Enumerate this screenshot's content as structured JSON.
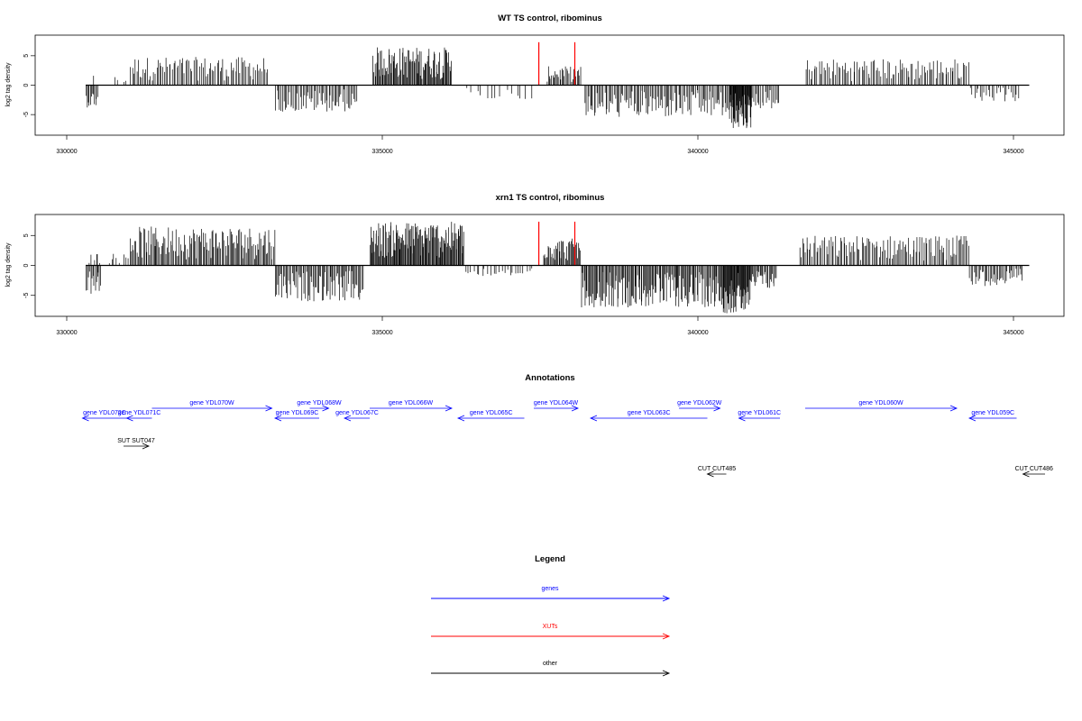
{
  "chart_data": [
    {
      "type": "bar",
      "title": "WT TS control, ribominus",
      "ylabel": "log2 tag density",
      "xlim": [
        329500,
        345800
      ],
      "ylim": [
        -8.5,
        8.5
      ],
      "x_ticks": [
        330000,
        335000,
        340000,
        345000
      ],
      "y_ticks": [
        -5,
        0,
        5
      ],
      "baseline_range": [
        330300,
        345250
      ],
      "segments": [
        {
          "from": 330300,
          "to": 330500,
          "sign": -1,
          "max": 3.8,
          "density": 12
        },
        {
          "from": 330420,
          "to": 330440,
          "sign": 1,
          "max": 3.0,
          "density": 1
        },
        {
          "from": 330700,
          "to": 331000,
          "sign": 1,
          "max": 1.5,
          "density": 4
        },
        {
          "from": 331000,
          "to": 333200,
          "sign": 1,
          "max": 4.8,
          "density": 90
        },
        {
          "from": 333300,
          "to": 334600,
          "sign": -1,
          "max": 4.5,
          "density": 60
        },
        {
          "from": 334850,
          "to": 336100,
          "sign": 1,
          "max": 6.5,
          "density": 95
        },
        {
          "from": 336300,
          "to": 337400,
          "sign": -1,
          "max": 2.5,
          "density": 14
        },
        {
          "from": 337600,
          "to": 338150,
          "sign": 1,
          "max": 3.2,
          "density": 30
        },
        {
          "from": 338200,
          "to": 340500,
          "sign": -1,
          "max": 5.5,
          "density": 110
        },
        {
          "from": 340500,
          "to": 340850,
          "sign": -1,
          "max": 7.5,
          "density": 45
        },
        {
          "from": 340850,
          "to": 341300,
          "sign": -1,
          "max": 4.0,
          "density": 20
        },
        {
          "from": 341700,
          "to": 344300,
          "sign": 1,
          "max": 4.5,
          "density": 100
        },
        {
          "from": 344300,
          "to": 345100,
          "sign": -1,
          "max": 2.8,
          "density": 25
        }
      ],
      "highlight_lines": [
        {
          "x": 337480,
          "y": 7.3,
          "color": "#ff0000"
        },
        {
          "x": 338050,
          "y": 7.3,
          "color": "#ff0000"
        }
      ]
    },
    {
      "type": "bar",
      "title": "xrn1 TS control, ribominus",
      "ylabel": "log2 tag density",
      "xlim": [
        329500,
        345800
      ],
      "ylim": [
        -8.5,
        8.5
      ],
      "x_ticks": [
        330000,
        335000,
        340000,
        345000
      ],
      "y_ticks": [
        -5,
        0,
        5
      ],
      "baseline_range": [
        330300,
        345250
      ],
      "segments": [
        {
          "from": 330300,
          "to": 330550,
          "sign": -1,
          "max": 5.0,
          "density": 14
        },
        {
          "from": 330350,
          "to": 330550,
          "sign": 1,
          "max": 2.2,
          "density": 6
        },
        {
          "from": 330650,
          "to": 331000,
          "sign": 1,
          "max": 2.0,
          "density": 8
        },
        {
          "from": 331000,
          "to": 333300,
          "sign": 1,
          "max": 6.5,
          "density": 130
        },
        {
          "from": 333300,
          "to": 334700,
          "sign": -1,
          "max": 6.0,
          "density": 80
        },
        {
          "from": 334800,
          "to": 336300,
          "sign": 1,
          "max": 7.3,
          "density": 130
        },
        {
          "from": 336300,
          "to": 337400,
          "sign": -1,
          "max": 1.8,
          "density": 25
        },
        {
          "from": 337550,
          "to": 338150,
          "sign": 1,
          "max": 4.5,
          "density": 40
        },
        {
          "from": 338150,
          "to": 340400,
          "sign": -1,
          "max": 7.0,
          "density": 150
        },
        {
          "from": 340400,
          "to": 340850,
          "sign": -1,
          "max": 8.0,
          "density": 50
        },
        {
          "from": 340850,
          "to": 341250,
          "sign": -1,
          "max": 4.0,
          "density": 25
        },
        {
          "from": 341600,
          "to": 344300,
          "sign": 1,
          "max": 5.0,
          "density": 120
        },
        {
          "from": 344300,
          "to": 345150,
          "sign": -1,
          "max": 3.5,
          "density": 40
        }
      ],
      "highlight_lines": [
        {
          "x": 337480,
          "y": 7.3,
          "color": "#ff0000"
        },
        {
          "x": 338050,
          "y": 7.3,
          "color": "#ff0000"
        }
      ]
    }
  ],
  "annotations": {
    "title": "Annotations",
    "xlim": [
      329500,
      345800
    ],
    "features": [
      {
        "label": "gene YDL072C",
        "start": 330250,
        "end": 330950,
        "strand": "-",
        "row": 2,
        "kind": "gene"
      },
      {
        "label": "gene YDL071C",
        "start": 330950,
        "end": 331350,
        "strand": "-",
        "row": 2,
        "kind": "gene"
      },
      {
        "label": "gene YDL070W",
        "start": 331350,
        "end": 333250,
        "strand": "+",
        "row": 1,
        "kind": "gene"
      },
      {
        "label": "gene YDL068W",
        "start": 333850,
        "end": 334150,
        "strand": "+",
        "row": 1,
        "kind": "gene"
      },
      {
        "label": "gene YDL069C",
        "start": 333300,
        "end": 334000,
        "strand": "-",
        "row": 2,
        "kind": "gene"
      },
      {
        "label": "gene YDL067C",
        "start": 334400,
        "end": 334800,
        "strand": "-",
        "row": 2,
        "kind": "gene"
      },
      {
        "label": "gene YDL066W",
        "start": 334800,
        "end": 336100,
        "strand": "+",
        "row": 1,
        "kind": "gene"
      },
      {
        "label": "gene YDL065C",
        "start": 336200,
        "end": 337250,
        "strand": "-",
        "row": 2,
        "kind": "gene"
      },
      {
        "label": "gene YDL064W",
        "start": 337400,
        "end": 338100,
        "strand": "+",
        "row": 1,
        "kind": "gene"
      },
      {
        "label": "gene YDL063C",
        "start": 338300,
        "end": 340150,
        "strand": "-",
        "row": 2,
        "kind": "gene"
      },
      {
        "label": "gene YDL062W",
        "start": 339700,
        "end": 340350,
        "strand": "+",
        "row": 1,
        "kind": "gene"
      },
      {
        "label": "gene YDL061C",
        "start": 340650,
        "end": 341300,
        "strand": "-",
        "row": 2,
        "kind": "gene"
      },
      {
        "label": "gene YDL060W",
        "start": 341700,
        "end": 344100,
        "strand": "+",
        "row": 1,
        "kind": "gene"
      },
      {
        "label": "gene YDL059C",
        "start": 344300,
        "end": 345050,
        "strand": "-",
        "row": 2,
        "kind": "gene"
      },
      {
        "label": "SUT SUT047",
        "start": 330900,
        "end": 331300,
        "strand": "+",
        "row": 3,
        "kind": "other"
      },
      {
        "label": "CUT CUT485",
        "start": 340150,
        "end": 340450,
        "strand": "-",
        "row": 4,
        "kind": "other"
      },
      {
        "label": "CUT CUT486",
        "start": 345150,
        "end": 345500,
        "strand": "-",
        "row": 4,
        "kind": "other"
      }
    ]
  },
  "legend": {
    "title": "Legend",
    "items": [
      {
        "label": "genes",
        "color": "#0000ff"
      },
      {
        "label": "XUTs",
        "color": "#ff0000"
      },
      {
        "label": "other",
        "color": "#000000"
      }
    ]
  }
}
